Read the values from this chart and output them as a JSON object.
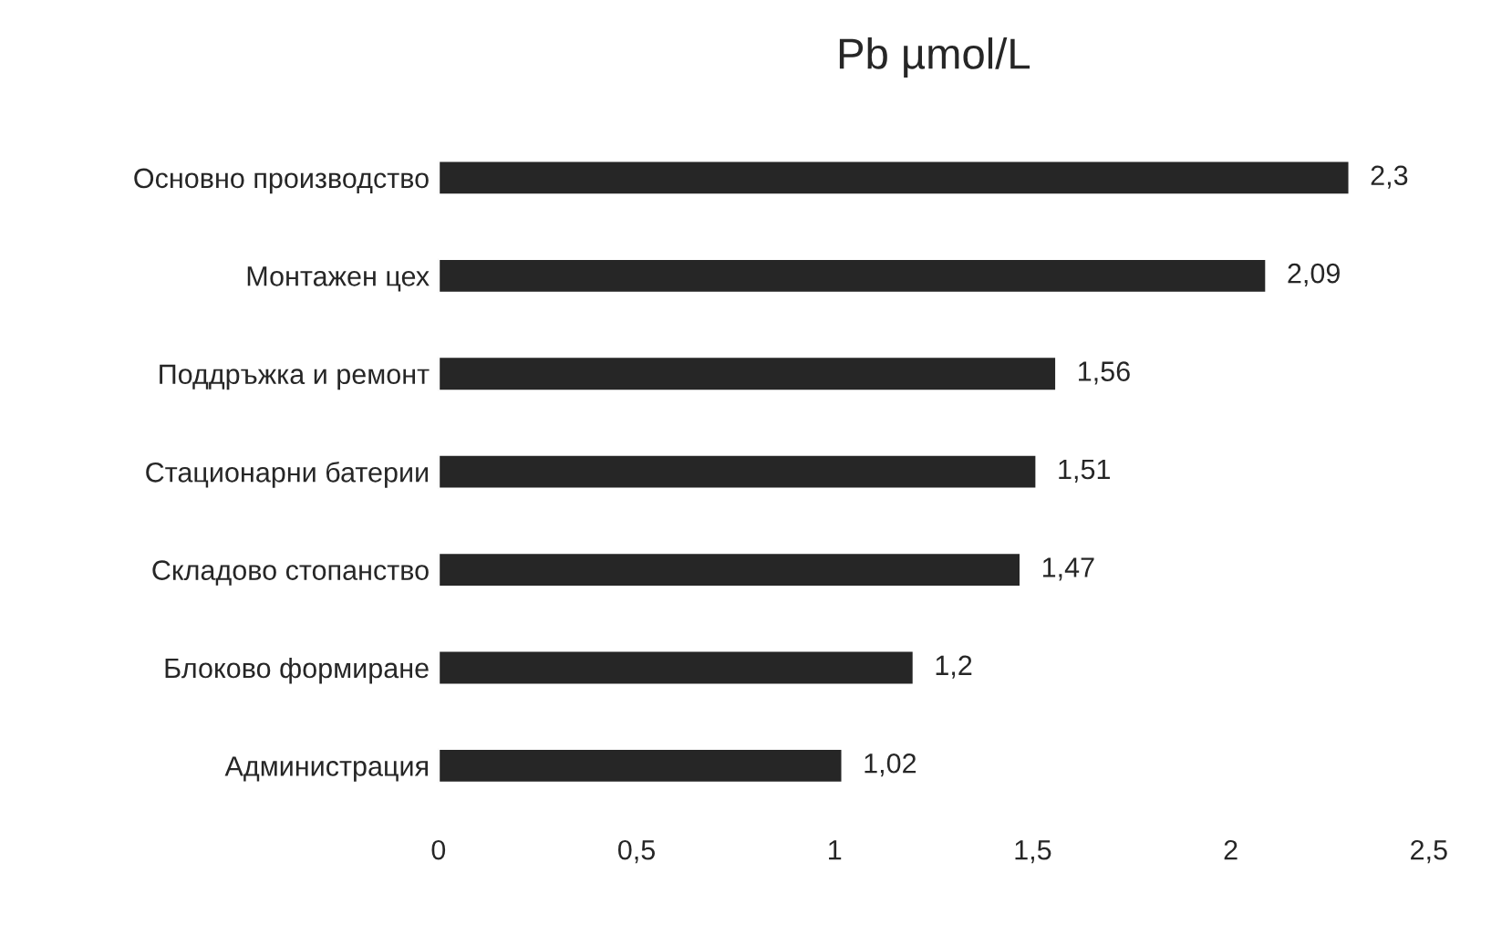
{
  "chart_data": {
    "type": "bar",
    "orientation": "horizontal",
    "title": "Pb µmol/L",
    "categories": [
      "Основно производство",
      "Монтажен цех",
      "Поддръжка и ремонт",
      "Стационарни батерии",
      "Складово стопанство",
      "Блоково формиране",
      "Администрация"
    ],
    "values": [
      2.3,
      2.09,
      1.56,
      1.51,
      1.47,
      1.2,
      1.02
    ],
    "value_labels": [
      "2,3",
      "2,09",
      "1,56",
      "1,51",
      "1,47",
      "1,2",
      "1,02"
    ],
    "color": "#262626",
    "xlim": [
      0,
      2.5
    ],
    "xticks": [
      0,
      {
        "value": 0.5,
        "label": "0,5"
      },
      1,
      {
        "value": 1.5,
        "label": "1,5"
      },
      2,
      {
        "value": 2.5,
        "label": "2,5"
      }
    ],
    "grid": false
  }
}
